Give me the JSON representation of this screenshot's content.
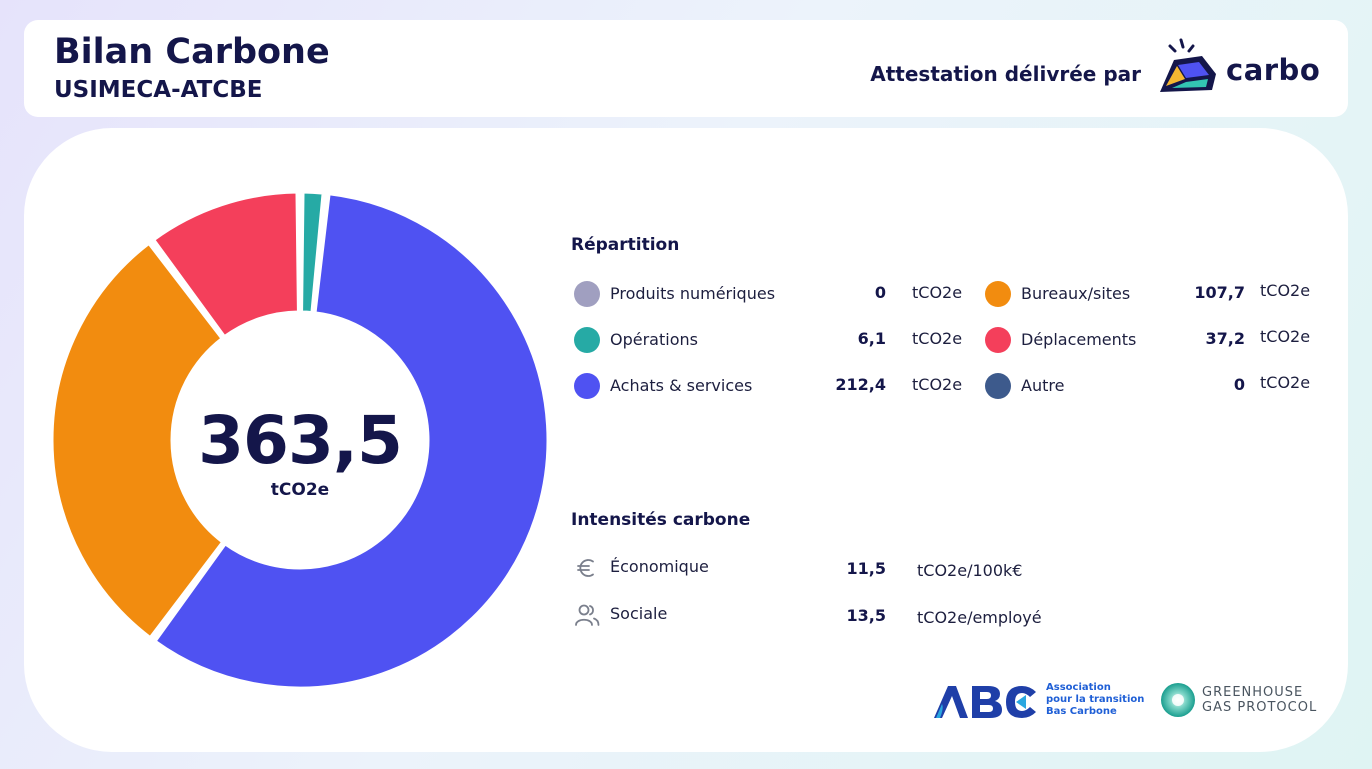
{
  "header": {
    "title": "Bilan Carbone",
    "company": "USIMECA-ATCBE",
    "attestation": "Attestation délivrée par",
    "brand": "carbo"
  },
  "total": {
    "value": "363,5",
    "unit": "tCO2e"
  },
  "repartition": {
    "title": "Répartition",
    "left": [
      {
        "label": "Produits numériques",
        "value": "0",
        "unit": "tCO2e",
        "color": "#a09fc0"
      },
      {
        "label": "Opérations",
        "value": "6,1",
        "unit": "tCO2e",
        "color": "#26aaa5"
      },
      {
        "label": "Achats & services",
        "value": "212,4",
        "unit": "tCO2e",
        "color": "#4f52f2"
      }
    ],
    "right": [
      {
        "label": "Bureaux/sites",
        "value": "107,7",
        "unit": "tCO2e",
        "color": "#f28c0f"
      },
      {
        "label": "Déplacements",
        "value": "37,2",
        "unit": "tCO2e",
        "color": "#f43f5b"
      },
      {
        "label": "Autre",
        "value": "0",
        "unit": "tCO2e",
        "color": "#3d5a8c"
      }
    ]
  },
  "intensites": {
    "title": "Intensités carbone",
    "rows": [
      {
        "icon": "euro-icon",
        "label": "Économique",
        "value": "11,5",
        "unit": "tCO2e/100k€"
      },
      {
        "icon": "users-icon",
        "label": "Sociale",
        "value": "13,5",
        "unit": "tCO2e/employé"
      }
    ]
  },
  "footer": {
    "abc_lines": [
      "Association",
      "pour la transition",
      "Bas Carbone"
    ],
    "ghg_lines": [
      "GREENHOUSE",
      "GAS PROTOCOL"
    ]
  },
  "chart_data": {
    "type": "pie",
    "title": "",
    "categories": [
      "Produits numériques",
      "Opérations",
      "Achats & services",
      "Bureaux/sites",
      "Déplacements",
      "Autre"
    ],
    "values": [
      0,
      6.1,
      212.4,
      107.7,
      37.2,
      0
    ],
    "colors": [
      "#a09fc0",
      "#26aaa5",
      "#4f52f2",
      "#f28c0f",
      "#f43f5b",
      "#3d5a8c"
    ],
    "center_label": "363,5",
    "center_unit": "tCO2e"
  }
}
